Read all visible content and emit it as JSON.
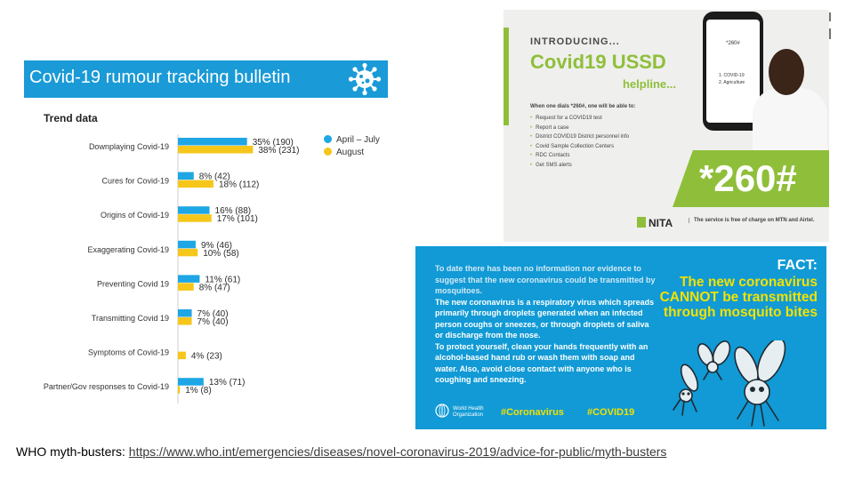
{
  "bulletin": {
    "title": "Covid-19 rumour tracking bulletin",
    "trend_label": "Trend data",
    "legend": [
      {
        "label": "April – July",
        "color": "#1ea6e5"
      },
      {
        "label": "August",
        "color": "#f6c61b"
      }
    ]
  },
  "chart_data": {
    "type": "bar",
    "orientation": "horizontal",
    "title": "Trend data",
    "categories": [
      "Downplaying Covid-19",
      "Cures for Covid-19",
      "Origins of Covid-19",
      "Exaggerating Covid-19",
      "Preventing Covid 19",
      "Transmitting Covid 19",
      "Symptoms of Covid-19",
      "Partner/Gov responses to Covid-19"
    ],
    "series": [
      {
        "name": "April – July",
        "color": "#1ea6e5",
        "values": [
          35,
          8,
          16,
          9,
          11,
          7,
          0,
          13
        ],
        "labels": [
          "35% (190)",
          "8% (42)",
          "16% (88)",
          "9% (46)",
          "11% (61)",
          "7% (40)",
          "",
          "13% (71)"
        ]
      },
      {
        "name": "August",
        "color": "#f6c61b",
        "values": [
          38,
          18,
          17,
          10,
          8,
          7,
          4,
          1
        ],
        "labels": [
          "38% (231)",
          "18% (112)",
          "17% (101)",
          "10% (58)",
          "8% (47)",
          "7% (40)",
          "4% (23)",
          "1% (8)"
        ]
      }
    ],
    "xlim": [
      0,
      40
    ],
    "grid": false,
    "legend_position": "top-right"
  },
  "ussd": {
    "introducing": "INTRODUCING...",
    "title": "Covid19 USSD",
    "helpline": "helpline...",
    "when_text": "When one dials *260#, one will be able to:",
    "items": [
      "Request for a COVID19 test",
      "Report a case",
      "District COVID19 District personnel info",
      "Covid Sample Collection Centers",
      "RDC Contacts",
      "Get SMS alerts"
    ],
    "code": "*260#",
    "phone_code": "*260#",
    "phone_menu": [
      "1. COVID-19",
      "2. Agriculture"
    ],
    "logo_text": "NITA",
    "free_text": "The service is free of charge on MTN and Airtel.",
    "green": "#8fbf3a"
  },
  "fact": {
    "paragraphs": [
      "To date there has been no information nor evidence to suggest that the new coronavirus could be transmitted by mosquitoes.",
      "The new coronavirus is a respiratory virus which spreads primarily through droplets generated when an infected person coughs or sneezes, or through droplets of saliva or discharge from the nose.",
      "To protect yourself, clean your hands frequently with an alcohol-based hand rub or wash them with soap and water. Also, avoid close contact with anyone who is coughing and sneezing."
    ],
    "label": "FACT:",
    "headline": "The new coronavirus CANNOT be transmitted through mosquito bites",
    "who_name": [
      "World Health",
      "Organization"
    ],
    "hashtags": [
      "#Coronavirus",
      "#COVID19"
    ],
    "background": "#119ad5",
    "accent": "#f3e200"
  },
  "footer": {
    "prefix": "WHO myth-busters: ",
    "link": "https://www.who.int/emergencies/diseases/novel-coronavirus-2019/advice-for-public/myth-busters"
  },
  "icons": [
    "coronavirus-icon",
    "phone-icon",
    "who-logo-icon",
    "mosquito-icon"
  ]
}
